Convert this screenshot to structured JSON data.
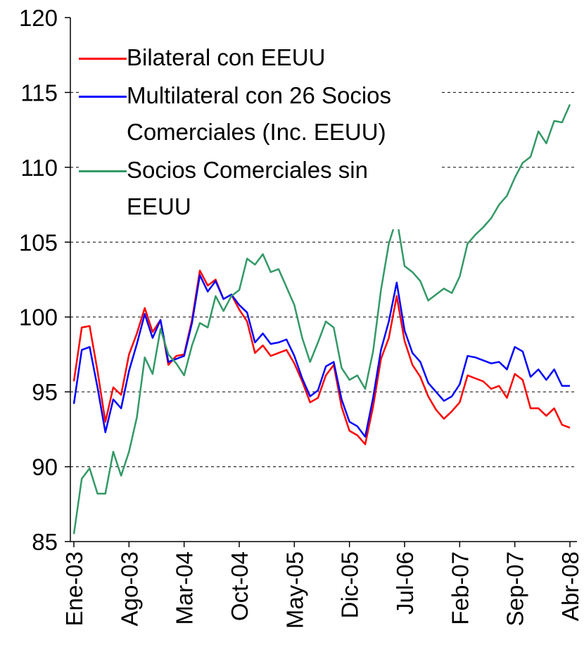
{
  "chart_data": {
    "type": "line",
    "categories": [
      "Ene-03",
      null,
      null,
      null,
      null,
      null,
      null,
      "Ago-03",
      null,
      null,
      null,
      null,
      null,
      null,
      "Mar-04",
      null,
      null,
      null,
      null,
      null,
      null,
      "Oct-04",
      null,
      null,
      null,
      null,
      null,
      null,
      "May-05",
      null,
      null,
      null,
      null,
      null,
      null,
      "Dic-05",
      null,
      null,
      null,
      null,
      null,
      null,
      "Jul-06",
      null,
      null,
      null,
      null,
      null,
      null,
      "Feb-07",
      null,
      null,
      null,
      null,
      null,
      null,
      "Sep-07",
      null,
      null,
      null,
      null,
      null,
      null,
      "Abr-08"
    ],
    "series": [
      {
        "name": "Bilateral con EEUU",
        "color": "#ff0000",
        "values": [
          95.7,
          99.3,
          99.4,
          96.4,
          93.0,
          95.3,
          94.8,
          97.5,
          98.9,
          100.6,
          99.0,
          99.8,
          96.8,
          97.4,
          97.5,
          99.8,
          103.1,
          102.1,
          102.5,
          101.2,
          101.5,
          100.5,
          99.7,
          97.6,
          98.1,
          97.4,
          97.6,
          97.8,
          96.9,
          95.7,
          94.3,
          94.6,
          96.1,
          96.8,
          94.0,
          92.4,
          92.1,
          91.5,
          94.0,
          97.2,
          98.6,
          101.4,
          98.4,
          96.8,
          96.0,
          94.7,
          93.8,
          93.2,
          93.7,
          94.3,
          96.1,
          95.9,
          95.7,
          95.2,
          95.4,
          94.6,
          96.2,
          95.8,
          93.9,
          93.9,
          93.4,
          93.9,
          92.8,
          92.6
        ]
      },
      {
        "name": "Multilateral con 26 Socios Comerciales (Inc. EEUU)",
        "color": "#0000ff",
        "values": [
          94.2,
          97.8,
          98.0,
          95.3,
          92.3,
          94.5,
          93.9,
          96.4,
          98.2,
          100.2,
          98.6,
          99.8,
          97.0,
          97.2,
          97.4,
          99.6,
          102.8,
          101.7,
          102.4,
          101.2,
          101.5,
          100.8,
          100.3,
          98.3,
          98.9,
          98.2,
          98.3,
          98.5,
          97.4,
          95.9,
          94.7,
          95.1,
          96.7,
          97.0,
          94.5,
          93.0,
          92.7,
          92.0,
          94.6,
          97.8,
          99.7,
          102.3,
          99.1,
          97.6,
          97.0,
          95.6,
          95.0,
          94.4,
          94.7,
          95.5,
          97.4,
          97.3,
          97.1,
          96.9,
          97.0,
          96.5,
          98.0,
          97.7,
          96.0,
          96.5,
          95.8,
          96.5,
          95.4,
          95.4
        ]
      },
      {
        "name": "Socios Comerciales sin EEUU",
        "color": "#339966",
        "values": [
          85.5,
          89.2,
          89.9,
          88.2,
          88.2,
          91.0,
          89.4,
          91.0,
          93.3,
          97.3,
          96.2,
          99.2,
          97.5,
          96.9,
          96.1,
          98.1,
          99.6,
          99.3,
          101.4,
          100.4,
          101.4,
          101.8,
          103.9,
          103.5,
          104.2,
          103.0,
          103.2,
          102.0,
          100.8,
          98.6,
          97.0,
          98.3,
          99.7,
          99.3,
          96.6,
          95.8,
          96.1,
          95.2,
          97.7,
          101.8,
          104.9,
          106.6,
          103.4,
          103.0,
          102.4,
          101.1,
          101.5,
          101.9,
          101.6,
          102.7,
          104.9,
          105.5,
          106.0,
          106.6,
          107.5,
          108.1,
          109.3,
          110.3,
          110.7,
          112.4,
          111.6,
          113.1,
          113.0,
          114.2
        ]
      }
    ],
    "ylim": [
      85,
      120
    ],
    "yticks": [
      85,
      90,
      95,
      100,
      105,
      110,
      115,
      120
    ],
    "grid": true,
    "legend": "upper left"
  }
}
